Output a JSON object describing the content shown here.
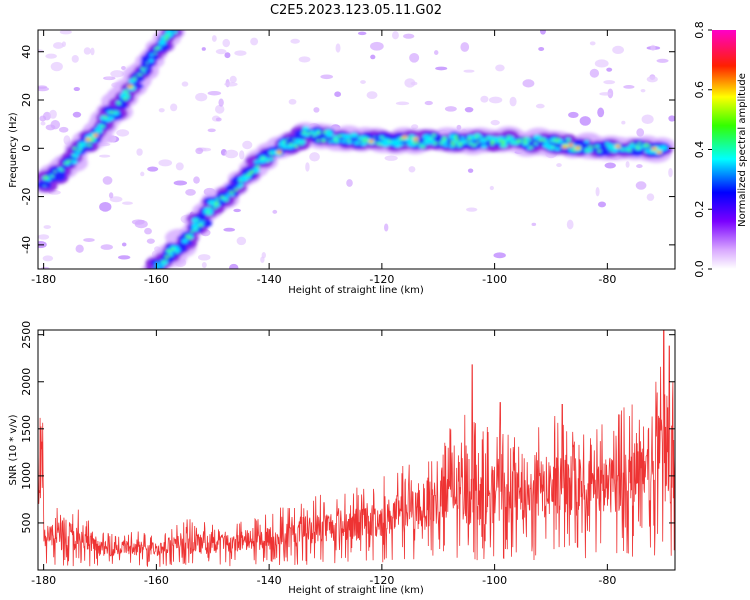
{
  "title": "C2E5.2023.123.05.11.G02",
  "chart_data": [
    {
      "type": "heatmap",
      "xlabel": "Height of straight line (km)",
      "ylabel": "Frequency (Hz)",
      "xlim": [
        -181,
        -68
      ],
      "ylim": [
        -50,
        49
      ],
      "xticks": [
        -180,
        -160,
        -140,
        -120,
        -100,
        -80
      ],
      "yticks": [
        -40,
        -20,
        0,
        20,
        40
      ],
      "colorbar": {
        "label": "Normalized spectral amplitude",
        "range": [
          0,
          0.8
        ],
        "ticks": [
          0.0,
          0.2,
          0.4,
          0.6,
          0.8
        ],
        "colormap": "white-violet-blue-cyan-green-yellow-red-magenta"
      },
      "features": [
        {
          "name": "",
          "ridge": [
            [
              -180,
              -15
            ],
            [
              -176,
              -7
            ],
            [
              -172,
              3
            ],
            [
              -168,
              14
            ],
            [
              -164,
              26
            ],
            [
              -160,
              40
            ],
            [
              -157,
              49
            ]
          ]
        },
        {
          "name": "",
          "ridge": [
            [
              -160,
              -49
            ],
            [
              -155,
              -38
            ],
            [
              -150,
              -24
            ],
            [
              -145,
              -14
            ],
            [
              -141,
              -5
            ],
            [
              -137,
              1
            ],
            [
              -133,
              6
            ],
            [
              -128,
              4
            ],
            [
              -120,
              3
            ],
            [
              -110,
              3
            ],
            [
              -100,
              3
            ],
            [
              -90,
              2
            ],
            [
              -80,
              0
            ],
            [
              -70,
              0
            ]
          ]
        }
      ]
    },
    {
      "type": "line",
      "xlabel": "Height of straight line (km)",
      "ylabel": "SNR (10 * v/v)",
      "xlim": [
        -181,
        -68
      ],
      "ylim": [
        0,
        2550
      ],
      "xticks": [
        -180,
        -160,
        -140,
        -120,
        -100,
        -80
      ],
      "yticks": [
        500,
        1000,
        1500,
        2000,
        2500
      ],
      "color": "#ee3333",
      "envelope": [
        [
          -180,
          250,
          550
        ],
        [
          -176,
          200,
          800
        ],
        [
          -170,
          150,
          400
        ],
        [
          -165,
          150,
          420
        ],
        [
          -160,
          150,
          400
        ],
        [
          -155,
          170,
          550
        ],
        [
          -150,
          170,
          500
        ],
        [
          -145,
          200,
          520
        ],
        [
          -140,
          200,
          650
        ],
        [
          -135,
          250,
          700
        ],
        [
          -130,
          300,
          850
        ],
        [
          -125,
          300,
          900
        ],
        [
          -120,
          350,
          1000
        ],
        [
          -115,
          400,
          1150
        ],
        [
          -110,
          450,
          1400
        ],
        [
          -105,
          450,
          1700
        ],
        [
          -100,
          500,
          1500
        ],
        [
          -95,
          500,
          1400
        ],
        [
          -90,
          550,
          1700
        ],
        [
          -85,
          550,
          1500
        ],
        [
          -80,
          600,
          1600
        ],
        [
          -75,
          650,
          1900
        ],
        [
          -70,
          700,
          2200
        ],
        [
          -68,
          700,
          2000
        ]
      ],
      "peaks": [
        [
          -104,
          2180
        ],
        [
          -99,
          1780
        ],
        [
          -88,
          1760
        ],
        [
          -70,
          2550
        ],
        [
          -69,
          2380
        ]
      ]
    }
  ]
}
